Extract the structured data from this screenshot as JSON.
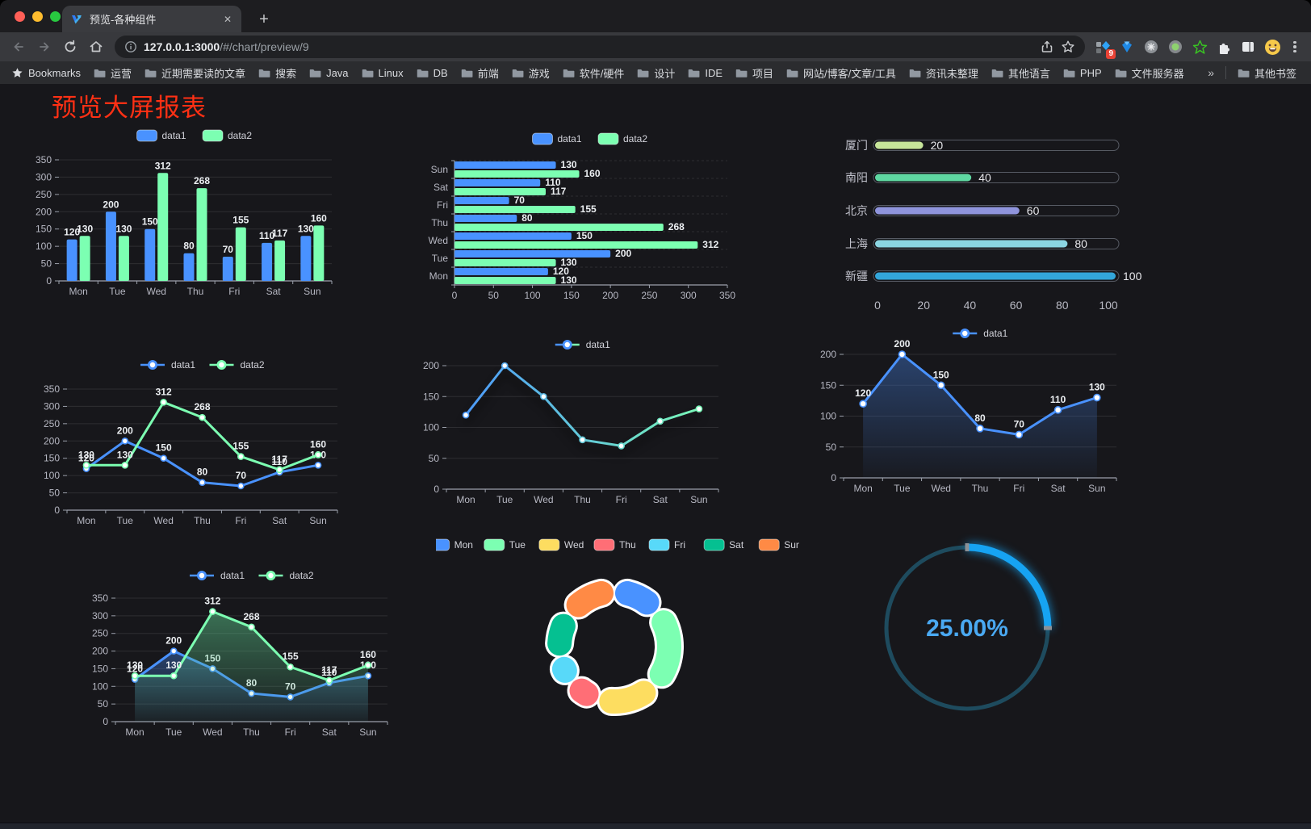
{
  "browser": {
    "tab_title": "预览-各种组件",
    "url_host": "127.0.0.1:3000",
    "url_path": "/#/chart/preview/9",
    "extension_badge": "9",
    "bookmarks_label": "Bookmarks",
    "bookmarks": [
      "运营",
      "近期需要读的文章",
      "搜索",
      "Java",
      "Linux",
      "DB",
      "前端",
      "游戏",
      "软件/硬件",
      "设计",
      "IDE",
      "项目",
      "网站/博客/文章/工具",
      "资讯未整理",
      "其他语言",
      "PHP",
      "文件服务器"
    ],
    "other_bookmarks": "其他书签",
    "icons": {
      "close": "✕",
      "new_tab": "+",
      "overflow": "»"
    }
  },
  "page": {
    "title": "预览大屏报表",
    "title_color": "#ff3014",
    "background": "#17171b"
  },
  "chart_data": [
    {
      "id": "bar-grouped",
      "type": "bar",
      "categories": [
        "Mon",
        "Tue",
        "Wed",
        "Thu",
        "Fri",
        "Sat",
        "Sun"
      ],
      "series": [
        {
          "name": "data1",
          "color": "#4992ff",
          "values": [
            120,
            200,
            150,
            80,
            70,
            110,
            130
          ]
        },
        {
          "name": "data2",
          "color": "#7cffb2",
          "values": [
            130,
            130,
            312,
            268,
            155,
            117,
            160
          ]
        }
      ],
      "ylim": [
        0,
        350
      ],
      "ytick_step": 50,
      "legend_position": "top",
      "grid": true
    },
    {
      "id": "bar-horizontal",
      "type": "bar",
      "orientation": "horizontal",
      "categories": [
        "Mon",
        "Tue",
        "Wed",
        "Thu",
        "Fri",
        "Sat",
        "Sun"
      ],
      "series": [
        {
          "name": "data1",
          "color": "#4992ff",
          "values": [
            120,
            200,
            150,
            80,
            70,
            110,
            130
          ]
        },
        {
          "name": "data2",
          "color": "#7cffb2",
          "values": [
            130,
            130,
            312,
            268,
            155,
            117,
            160
          ]
        }
      ],
      "xlim": [
        0,
        350
      ],
      "xtick_step": 50,
      "legend_position": "top",
      "grid": true
    },
    {
      "id": "bar-capsule",
      "type": "bar",
      "orientation": "horizontal",
      "categories": [
        "厦门",
        "南阳",
        "北京",
        "上海",
        "新疆"
      ],
      "values": [
        20,
        40,
        60,
        80,
        100
      ],
      "colors": [
        "#c7e59a",
        "#5fd8a2",
        "#8f94dc",
        "#8bd5e2",
        "#33a6da"
      ],
      "xlim": [
        0,
        100
      ],
      "xticks": [
        0,
        20,
        40,
        60,
        80,
        100
      ],
      "grid": false
    },
    {
      "id": "line-basic",
      "type": "line",
      "categories": [
        "Mon",
        "Tue",
        "Wed",
        "Thu",
        "Fri",
        "Sat",
        "Sun"
      ],
      "series": [
        {
          "name": "data1",
          "color": "#4992ff",
          "values": [
            120,
            200,
            150,
            80,
            70,
            110,
            130
          ]
        },
        {
          "name": "data2",
          "color": "#7cffb2",
          "values": [
            130,
            130,
            312,
            268,
            155,
            117,
            160
          ]
        }
      ],
      "ylim": [
        0,
        350
      ],
      "ytick_step": 50,
      "labels": true,
      "legend_position": "top"
    },
    {
      "id": "line-gradient",
      "type": "line",
      "categories": [
        "Mon",
        "Tue",
        "Wed",
        "Thu",
        "Fri",
        "Sat",
        "Sun"
      ],
      "series": [
        {
          "name": "data1",
          "gradient": [
            "#4992ff",
            "#7cffb2"
          ],
          "color": "#4992ff",
          "values": [
            120,
            200,
            150,
            80,
            70,
            110,
            130
          ]
        }
      ],
      "ylim": [
        0,
        200
      ],
      "ytick_step": 50,
      "labels": false,
      "legend_position": "top"
    },
    {
      "id": "line-area",
      "type": "area",
      "categories": [
        "Mon",
        "Tue",
        "Wed",
        "Thu",
        "Fri",
        "Sat",
        "Sun"
      ],
      "series": [
        {
          "name": "data1",
          "color": "#4992ff",
          "area": true,
          "values": [
            120,
            200,
            150,
            80,
            70,
            110,
            130
          ]
        }
      ],
      "ylim": [
        0,
        200
      ],
      "ytick_step": 50,
      "labels": true,
      "legend_position": "top"
    },
    {
      "id": "line-area-double",
      "type": "area",
      "categories": [
        "Mon",
        "Tue",
        "Wed",
        "Thu",
        "Fri",
        "Sat",
        "Sun"
      ],
      "series": [
        {
          "name": "data1",
          "color": "#4992ff",
          "area": true,
          "values": [
            120,
            200,
            150,
            80,
            70,
            110,
            130
          ]
        },
        {
          "name": "data2",
          "color": "#7cffb2",
          "area": true,
          "values": [
            130,
            130,
            312,
            268,
            155,
            117,
            160
          ]
        }
      ],
      "ylim": [
        0,
        350
      ],
      "ytick_step": 50,
      "labels": true,
      "legend_position": "top"
    },
    {
      "id": "doughnut",
      "type": "pie",
      "categories": [
        "Mon",
        "Tue",
        "Wed",
        "Thu",
        "Fri",
        "Sat",
        "Sun"
      ],
      "values": [
        120,
        200,
        150,
        80,
        70,
        110,
        130
      ],
      "colors": [
        "#4992ff",
        "#7cffb2",
        "#fddd60",
        "#ff6e76",
        "#58d9f9",
        "#05c091",
        "#ff8a45"
      ],
      "legend_position": "top",
      "border_color": "#ffffff"
    },
    {
      "id": "ring-progress",
      "type": "gauge",
      "value": 25,
      "label": "25.00%",
      "progress_color": "#16a3f2",
      "track_color": "#1e4b5e",
      "text_color": "#4aa9f2"
    }
  ]
}
